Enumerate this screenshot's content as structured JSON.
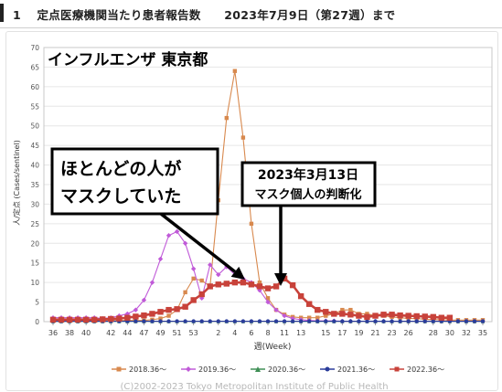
{
  "page": {
    "header_number": "1",
    "header_title": "定点医療機関当たり患者報告数　　2023年7月9日（第27週）まで"
  },
  "chart_data": {
    "type": "line",
    "title": "インフルエンザ 東京都",
    "xlabel": "週(Week)",
    "ylabel": "人/定点 (Cases/sentinel)",
    "ylim": [
      0,
      70
    ],
    "yticks": [
      0,
      5,
      10,
      15,
      20,
      25,
      30,
      35,
      40,
      45,
      50,
      55,
      60,
      65,
      70
    ],
    "x_tick_labels": [
      "36",
      "38",
      "40",
      "42",
      "44",
      "47",
      "49",
      "51",
      "53",
      "2",
      "4",
      "6",
      "8",
      "11",
      "13",
      "15",
      "17",
      "19",
      "21",
      "23",
      "26",
      "28",
      "30",
      "32",
      "35"
    ],
    "grid": true,
    "legend_position": "bottom",
    "series": [
      {
        "name": "2018.36～",
        "color": "#d8894e",
        "marker": "square",
        "values": [
          0.3,
          0.3,
          0.3,
          0.3,
          0.3,
          0.3,
          0.3,
          0.3,
          0.3,
          0.3,
          0.3,
          0.3,
          0.5,
          0.8,
          1.5,
          3,
          7.5,
          11,
          10.5,
          9,
          31,
          52,
          64,
          47,
          25,
          10,
          6,
          3,
          1.8,
          1.2,
          1,
          1,
          1,
          1.5,
          2,
          3,
          3,
          2,
          2,
          1.5,
          1.5,
          1.2,
          1,
          0.8,
          0.8,
          0.6,
          0.5,
          0.5,
          0.4,
          0.4,
          0.4,
          0.4,
          0.4
        ]
      },
      {
        "name": "2019.36～",
        "color": "#c05ad8",
        "marker": "diamond",
        "values": [
          1,
          1,
          1,
          1,
          1,
          1,
          0.8,
          1,
          1.5,
          2,
          3,
          5.5,
          10,
          16,
          22,
          23,
          20,
          13.5,
          6,
          14.5,
          12,
          14,
          12,
          11,
          10,
          8,
          5,
          3,
          1.5,
          0.8,
          0.5,
          0.3,
          0.2,
          0.2,
          0.2,
          0.1,
          0.1,
          0.1,
          0.1,
          0.1,
          0.1,
          0.1,
          0.1,
          0.1,
          0.1,
          0.1,
          0.1,
          0.1,
          0.1,
          0.1,
          0.1,
          0.1,
          0.1
        ]
      },
      {
        "name": "2020.36～",
        "color": "#3f8f55",
        "marker": "triangle",
        "values": [
          0.1,
          0.1,
          0.1,
          0.1,
          0.1,
          0.1,
          0.1,
          0.1,
          0.1,
          0.1,
          0.1,
          0.1,
          0.1,
          0.1,
          0.1,
          0.1,
          0.1,
          0.1,
          0.1,
          0.1,
          0.1,
          0.1,
          0.1,
          0.1,
          0.1,
          0.1,
          0.1,
          0.1,
          0.1,
          0.1,
          0.1,
          0.1,
          0.1,
          0.1,
          0.1,
          0.1,
          0.1,
          0.1,
          0.1,
          0.1,
          0.1,
          0.1,
          0.1,
          0.1,
          0.1,
          0.1,
          0.1,
          0.1,
          0.1,
          0.1,
          0.1,
          0.1,
          0.1
        ]
      },
      {
        "name": "2021.36～",
        "color": "#2a3c9a",
        "marker": "circle",
        "values": [
          0.1,
          0.1,
          0.1,
          0.1,
          0.1,
          0.1,
          0.1,
          0.1,
          0.1,
          0.1,
          0.1,
          0.1,
          0.1,
          0.1,
          0.1,
          0.1,
          0.1,
          0.1,
          0.1,
          0.1,
          0.1,
          0.1,
          0.1,
          0.1,
          0.1,
          0.1,
          0.1,
          0.1,
          0.1,
          0.1,
          0.1,
          0.1,
          0.1,
          0.1,
          0.1,
          0.1,
          0.1,
          0.1,
          0.1,
          0.1,
          0.1,
          0.1,
          0.1,
          0.1,
          0.1,
          0.1,
          0.1,
          0.1,
          0.1,
          0.1,
          0.1,
          0.1,
          0.1
        ]
      },
      {
        "name": "2022.36～",
        "color": "#c8423a",
        "marker": "square",
        "values": [
          0.5,
          0.5,
          0.5,
          0.5,
          0.5,
          0.5,
          0.6,
          0.7,
          0.8,
          1,
          1.3,
          1.6,
          2,
          2.5,
          3,
          3.2,
          3.8,
          5.5,
          7,
          9,
          9.5,
          9.7,
          10,
          10,
          9.5,
          9,
          8.5,
          9,
          11,
          9.3,
          6.5,
          4.5,
          3,
          2.5,
          2,
          2,
          1.8,
          1.5,
          1.2,
          1.5,
          1.8,
          1.8,
          1.6,
          1.5,
          1.4,
          1.3,
          1.2,
          1,
          1
        ]
      }
    ]
  },
  "annotations": {
    "mask_before": [
      "ほとんどの人が",
      "マスクしていた"
    ],
    "mask_change": [
      "2023年3月13日",
      "マスク個人の判断化"
    ]
  },
  "footer": {
    "copyright": "(C)2002-2023 Tokyo Metropolitan Institute of Public Health"
  }
}
